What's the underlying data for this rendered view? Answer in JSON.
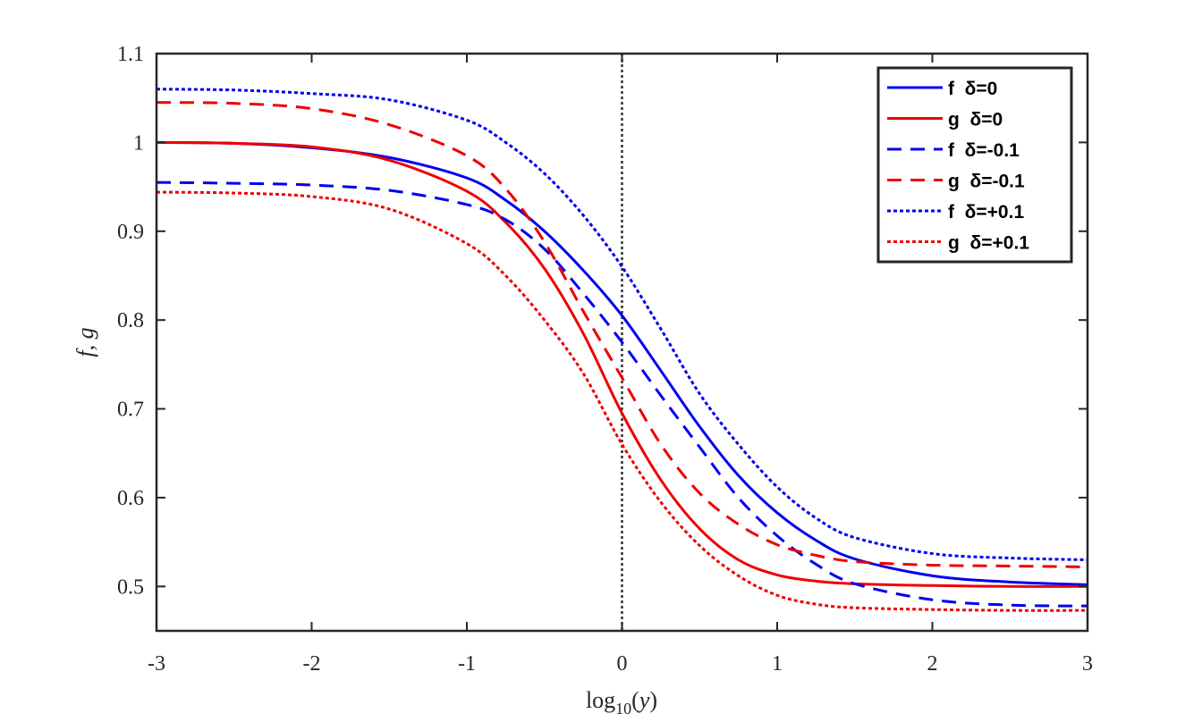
{
  "chart_data": {
    "type": "line",
    "xlabel": "log10(y)",
    "xlabel_base": "log",
    "xlabel_sub": "10",
    "xlabel_arg": "y",
    "ylabel": "f, g",
    "xlim": [
      -3,
      3
    ],
    "ylim": [
      0.45,
      1.1
    ],
    "xticks": [
      -3,
      -2,
      -1,
      0,
      1,
      2,
      3
    ],
    "xtick_labels": [
      "-3",
      "-2",
      "-1",
      "0",
      "1",
      "2",
      "3"
    ],
    "yticks": [
      0.5,
      0.6,
      0.7,
      0.8,
      0.9,
      1.0,
      1.1
    ],
    "ytick_labels": [
      "0.5",
      "0.6",
      "0.7",
      "0.8",
      "0.9",
      "1",
      "1.1"
    ],
    "grid": false,
    "legend_position": "top-right",
    "reference_line": {
      "x": 0,
      "style": "dotted",
      "color": "#333333"
    },
    "x": [
      -3,
      -2.5,
      -2,
      -1.5,
      -1,
      -0.75,
      -0.5,
      -0.25,
      0,
      0.25,
      0.5,
      0.75,
      1,
      1.25,
      1.5,
      2,
      2.5,
      3
    ],
    "series": [
      {
        "name": "f  δ=0",
        "color": "#0000ee",
        "dash": "solid",
        "values": [
          1.0,
          0.999,
          0.994,
          0.983,
          0.96,
          0.935,
          0.9,
          0.856,
          0.805,
          0.743,
          0.68,
          0.625,
          0.583,
          0.552,
          0.531,
          0.512,
          0.505,
          0.502
        ]
      },
      {
        "name": "g  δ=0",
        "color": "#ee0000",
        "dash": "solid",
        "values": [
          1.0,
          0.999,
          0.995,
          0.98,
          0.945,
          0.91,
          0.858,
          0.785,
          0.695,
          0.62,
          0.565,
          0.53,
          0.513,
          0.506,
          0.503,
          0.501,
          0.5,
          0.5
        ]
      },
      {
        "name": "f  δ=-0.1",
        "color": "#0000ee",
        "dash": "dashed",
        "values": [
          0.955,
          0.954,
          0.952,
          0.946,
          0.93,
          0.913,
          0.88,
          0.83,
          0.775,
          0.715,
          0.657,
          0.6,
          0.557,
          0.525,
          0.503,
          0.485,
          0.479,
          0.478
        ]
      },
      {
        "name": "g  δ=-0.1",
        "color": "#ee0000",
        "dash": "dashed",
        "values": [
          1.045,
          1.044,
          1.038,
          1.02,
          0.985,
          0.948,
          0.888,
          0.81,
          0.735,
          0.66,
          0.605,
          0.57,
          0.547,
          0.535,
          0.528,
          0.524,
          0.523,
          0.522
        ]
      },
      {
        "name": "f  δ=+0.1",
        "color": "#0000ee",
        "dash": "dotted",
        "values": [
          1.06,
          1.059,
          1.055,
          1.048,
          1.025,
          1.0,
          0.965,
          0.918,
          0.86,
          0.79,
          0.717,
          0.66,
          0.612,
          0.577,
          0.555,
          0.537,
          0.532,
          0.53
        ]
      },
      {
        "name": "g  δ=+0.1",
        "color": "#ee0000",
        "dash": "dotted",
        "values": [
          0.944,
          0.943,
          0.939,
          0.925,
          0.886,
          0.85,
          0.8,
          0.74,
          0.66,
          0.595,
          0.546,
          0.512,
          0.49,
          0.48,
          0.476,
          0.474,
          0.473,
          0.473
        ]
      }
    ]
  }
}
